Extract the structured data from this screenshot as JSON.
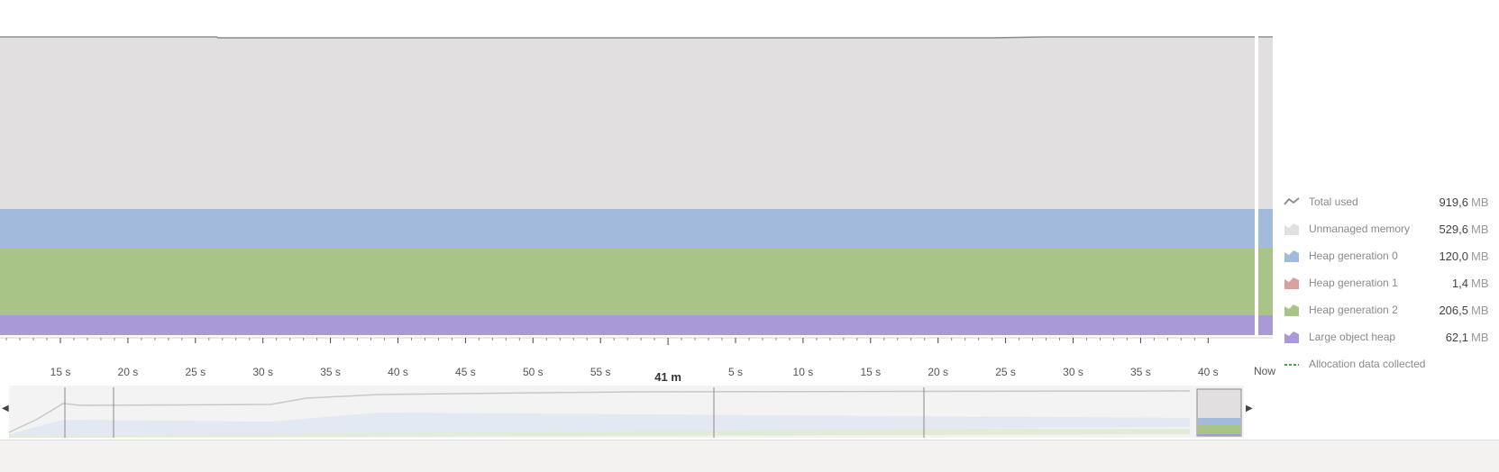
{
  "legend": [
    {
      "key": "total",
      "label": "Total used",
      "value": "919,6",
      "unit": "MB",
      "color": "#8a8a8a",
      "icon": "line-icon"
    },
    {
      "key": "unmanaged",
      "label": "Unmanaged memory",
      "value": "529,6",
      "unit": "MB",
      "color": "#e2dfe0",
      "icon": "area-icon"
    },
    {
      "key": "gen0",
      "label": "Heap generation 0",
      "value": "120,0",
      "unit": "MB",
      "color": "#a2bbdd",
      "icon": "area-icon"
    },
    {
      "key": "gen1",
      "label": "Heap generation 1",
      "value": "1,4",
      "unit": "MB",
      "color": "#d9a0a0",
      "icon": "area-icon"
    },
    {
      "key": "gen2",
      "label": "Heap generation 2",
      "value": "206,5",
      "unit": "MB",
      "color": "#a8c587",
      "icon": "area-icon"
    },
    {
      "key": "loh",
      "label": "Large object heap",
      "value": "62,1",
      "unit": "MB",
      "color": "#a999d6",
      "icon": "area-icon"
    },
    {
      "key": "alloc",
      "label": "Allocation data collected",
      "value": "",
      "unit": "",
      "color": "#3aa84a",
      "icon": "dashed-line-icon"
    }
  ],
  "axis": {
    "ticks": [
      "15 s",
      "20 s",
      "25 s",
      "30 s",
      "35 s",
      "40 s",
      "45 s",
      "50 s",
      "55 s",
      "41 m",
      "5 s",
      "10 s",
      "15 s",
      "20 s",
      "25 s",
      "30 s",
      "35 s",
      "40 s"
    ],
    "major_index": 9,
    "now_label": "Now"
  },
  "chart_data": {
    "type": "area",
    "title": "",
    "xlabel": "",
    "ylabel": "",
    "stacked": true,
    "series": [
      {
        "name": "Large object heap",
        "values_mb": [
          62.1
        ]
      },
      {
        "name": "Heap generation 2",
        "values_mb": [
          206.5
        ]
      },
      {
        "name": "Heap generation 1",
        "values_mb": [
          1.4
        ]
      },
      {
        "name": "Heap generation 0",
        "values_mb": [
          120.0
        ]
      },
      {
        "name": "Unmanaged memory",
        "values_mb": [
          529.6
        ]
      },
      {
        "name": "Total used",
        "values_mb": [
          919.6
        ]
      }
    ]
  }
}
